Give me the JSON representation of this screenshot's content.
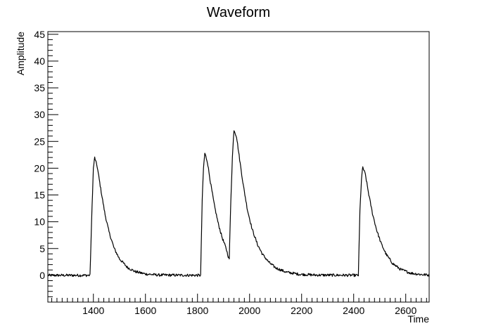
{
  "chart_data": {
    "type": "line",
    "title": "Waveform",
    "xlabel": "Time",
    "ylabel": "Amplitude",
    "xlim": [
      1225,
      2690
    ],
    "ylim": [
      -5,
      45.5
    ],
    "grid": false,
    "x_ticks": [
      1400,
      1600,
      1800,
      2000,
      2200,
      2400,
      2600
    ],
    "y_ticks": [
      0,
      5,
      10,
      15,
      20,
      25,
      30,
      35,
      40,
      45
    ],
    "series": [
      {
        "color": "#000000",
        "baseline": 0,
        "pulses": [
          {
            "start": 1387,
            "peak_time": 1405,
            "peak": 22.0
          },
          {
            "start": 1812,
            "peak_time": 1828,
            "peak": 22.8
          },
          {
            "start": 1922,
            "peak_time": 1940,
            "peak": 27.2
          },
          {
            "start": 2418,
            "peak_time": 2435,
            "peak": 20.2
          }
        ],
        "points": [
          [
            1225,
            0
          ],
          [
            1387,
            0
          ],
          [
            1395,
            13.0
          ],
          [
            1400,
            20.0
          ],
          [
            1405,
            22.0
          ],
          [
            1415,
            20.2
          ],
          [
            1430,
            15.6
          ],
          [
            1445,
            11.3
          ],
          [
            1460,
            8.1
          ],
          [
            1480,
            5.0
          ],
          [
            1500,
            3.1
          ],
          [
            1530,
            1.5
          ],
          [
            1560,
            0.7
          ],
          [
            1600,
            0.25
          ],
          [
            1650,
            0.05
          ],
          [
            1812,
            0
          ],
          [
            1818,
            14.0
          ],
          [
            1823,
            20.0
          ],
          [
            1828,
            22.8
          ],
          [
            1838,
            21.2
          ],
          [
            1850,
            17.3
          ],
          [
            1865,
            13.0
          ],
          [
            1880,
            9.6
          ],
          [
            1895,
            7.0
          ],
          [
            1910,
            5.0
          ],
          [
            1920,
            3.2
          ],
          [
            1922,
            3.1
          ],
          [
            1928,
            14.0
          ],
          [
            1934,
            22.0
          ],
          [
            1940,
            27.2
          ],
          [
            1950,
            25.9
          ],
          [
            1962,
            21.6
          ],
          [
            1976,
            16.8
          ],
          [
            1992,
            12.2
          ],
          [
            2010,
            8.6
          ],
          [
            2030,
            5.8
          ],
          [
            2050,
            3.9
          ],
          [
            2075,
            2.4
          ],
          [
            2100,
            1.4
          ],
          [
            2140,
            0.6
          ],
          [
            2190,
            0.2
          ],
          [
            2250,
            0.05
          ],
          [
            2418,
            0
          ],
          [
            2424,
            12.0
          ],
          [
            2430,
            18.0
          ],
          [
            2435,
            20.2
          ],
          [
            2445,
            18.8
          ],
          [
            2458,
            15.1
          ],
          [
            2472,
            11.6
          ],
          [
            2488,
            8.5
          ],
          [
            2505,
            6.0
          ],
          [
            2525,
            3.9
          ],
          [
            2550,
            2.2
          ],
          [
            2580,
            1.1
          ],
          [
            2620,
            0.4
          ],
          [
            2660,
            0.15
          ],
          [
            2690,
            0.05
          ]
        ]
      }
    ]
  }
}
